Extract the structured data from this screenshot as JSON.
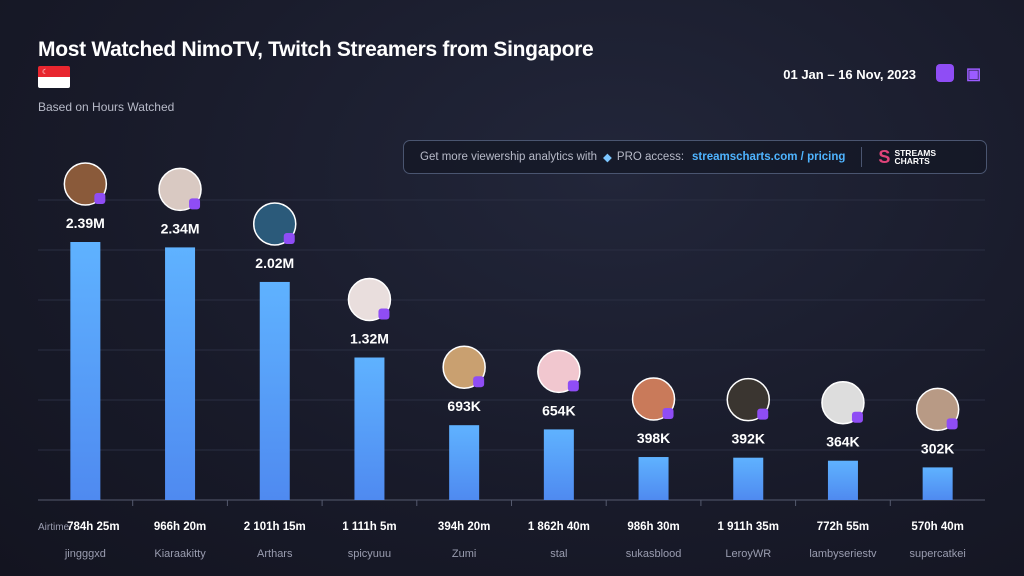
{
  "header": {
    "title": "Most Watched NimoTV, Twitch Streamers from Singapore",
    "subtitle": "Based on Hours Watched",
    "date_range": "01 Jan – 16 Nov, 2023",
    "platform_icons": [
      "nimotv-icon",
      "twitch-icon"
    ]
  },
  "promo": {
    "text": "Get more viewership analytics with",
    "pro": "PRO access:",
    "link": "streamscharts.com / pricing",
    "logo_line1": "STREAMS",
    "logo_line2": "CHARTS"
  },
  "chart_data": {
    "type": "bar",
    "title": "Most Watched NimoTV, Twitch Streamers from Singapore",
    "subtitle": "Based on Hours Watched",
    "categories": [
      "jingggxd",
      "Kiaraakitty",
      "Arthars",
      "spicyuuu",
      "Zumi",
      "stal",
      "sukasblood",
      "LeroyWR",
      "lambyseriestv",
      "supercatkei"
    ],
    "values": [
      2390000,
      2340000,
      2020000,
      1320000,
      693000,
      654000,
      398000,
      392000,
      364000,
      302000
    ],
    "value_labels": [
      "2.39M",
      "2.34M",
      "2.02M",
      "1.32M",
      "693K",
      "654K",
      "398K",
      "392K",
      "364K",
      "302K"
    ],
    "airtime_label": "Airtime:",
    "airtime": [
      "784h 25m",
      "966h 20m",
      "2 101h 15m",
      "1 111h 5m",
      "394h 20m",
      "1 862h 40m",
      "986h 30m",
      "1 911h 35m",
      "772h 55m",
      "570h 40m"
    ],
    "platform": "twitch",
    "ylim": [
      0,
      2400000
    ],
    "grid": true,
    "colors": {
      "bar_top": "#5fb2ff",
      "bar_bottom": "#4f8af0",
      "badge": "#8f4df5"
    }
  }
}
